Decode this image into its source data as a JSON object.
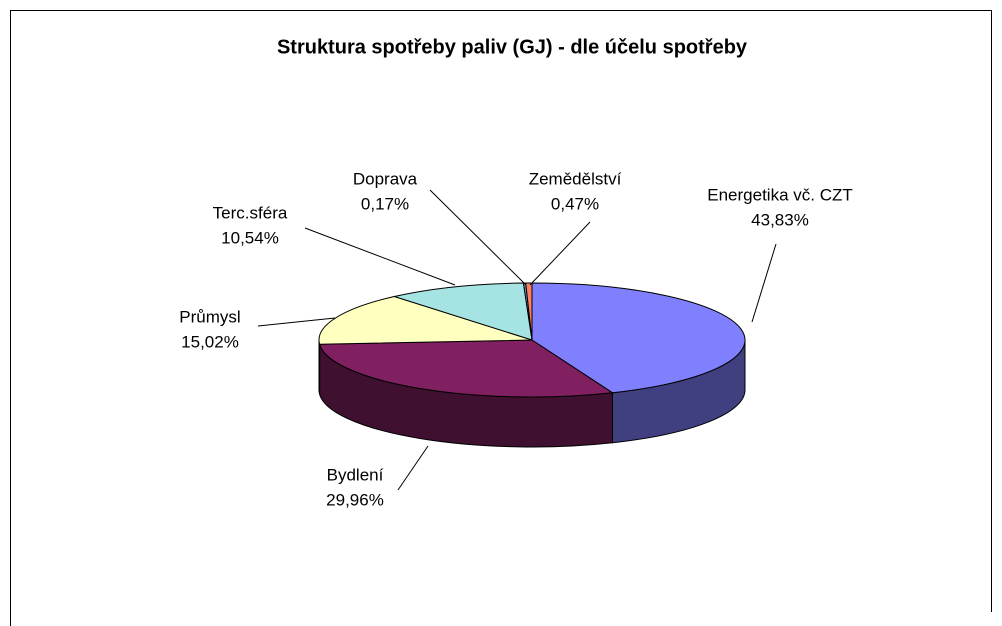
{
  "chart_data": {
    "type": "pie3d",
    "title": "Struktura spotřeby paliv (GJ) - dle účelu spotřeby",
    "categories": [
      "Energetika vč. CZT",
      "Bydlení",
      "Průmysl",
      "Terc.sféra",
      "Doprava",
      "Zemědělství"
    ],
    "values": [
      43.83,
      29.96,
      15.02,
      10.54,
      0.17,
      0.47
    ],
    "value_labels": [
      "43,83%",
      "29,96%",
      "15,02%",
      "10,54%",
      "0,17%",
      "0,47%"
    ],
    "colors": [
      "#8080ff",
      "#802060",
      "#ffffc0",
      "#a6e4e4",
      "#6699cc",
      "#ff8060"
    ]
  }
}
